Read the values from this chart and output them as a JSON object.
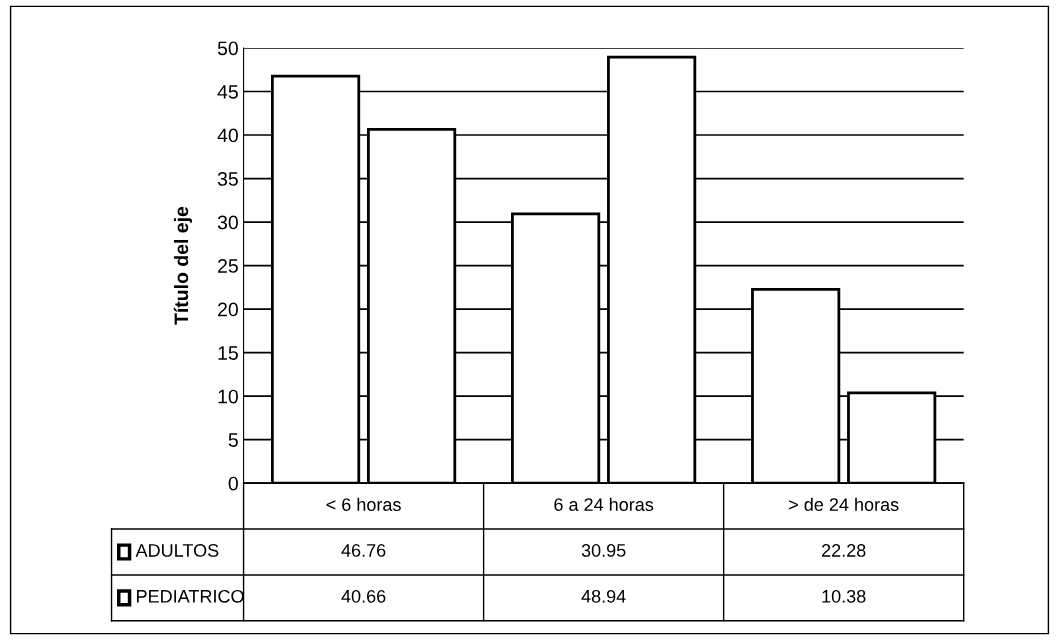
{
  "chart_data": {
    "type": "bar",
    "ylabel": "Título del eje",
    "categories": [
      "< 6 horas",
      "6 a 24 horas",
      "> de 24 horas"
    ],
    "series": [
      {
        "name": "ADULTOS",
        "color": "#ffffff",
        "values": [
          46.76,
          30.95,
          22.28
        ]
      },
      {
        "name": "PEDIATRICO",
        "color": "#ffffff",
        "values": [
          40.66,
          48.94,
          10.38
        ]
      }
    ],
    "ylim": [
      0,
      50
    ],
    "yticks": [
      0,
      5,
      10,
      15,
      20,
      25,
      30,
      35,
      40,
      45,
      50
    ],
    "grid": "y",
    "data_labels": true,
    "legend": "bottom",
    "tick_labels": "y"
  }
}
